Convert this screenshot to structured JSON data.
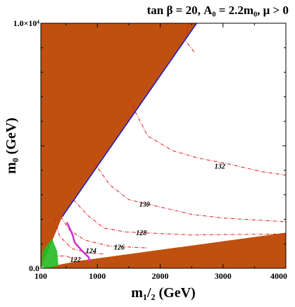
{
  "chart_data": {
    "type": "contour",
    "title": "tan β = 20, A₀ = 2.2m₀,  μ > 0",
    "xlabel": "m₁/₂ (GeV)",
    "ylabel": "m₀ (GeV)",
    "xlim": [
      100,
      4000
    ],
    "ylim": [
      0,
      10000
    ],
    "x_ticks": [
      100,
      1000,
      2000,
      3000,
      4000
    ],
    "x_tick_labels": [
      "100",
      "1000",
      "2000",
      "3000",
      "4000"
    ],
    "y_ticks": [
      0,
      10000
    ],
    "y_tick_labels": [
      "0.0",
      "1.0×10⁴"
    ],
    "colors": {
      "excluded": "#c0500f",
      "higgs_contours": "#e01818",
      "relic_density_boundary": "#2020c0",
      "purple_band": "#cc33cc",
      "green_region": "#22bb22"
    },
    "excluded_regions": [
      {
        "name": "upper-left excluded wedge",
        "polygon": [
          [
            100,
            10000
          ],
          [
            2580,
            10000
          ],
          [
            440,
            2100
          ],
          [
            100,
            0
          ]
        ]
      },
      {
        "name": "lower-right excluded wedge",
        "polygon": [
          [
            100,
            0
          ],
          [
            4000,
            0
          ],
          [
            4000,
            1450
          ],
          [
            700,
            300
          ]
        ]
      }
    ],
    "boundary_line": {
      "name": "upper boundary",
      "points": [
        [
          440,
          2100
        ],
        [
          2580,
          10000
        ]
      ]
    },
    "higgs_mass_contours": [
      {
        "label": "122",
        "label_at": [
          650,
          350
        ],
        "points": [
          [
            180,
            0
          ],
          [
            300,
            500
          ],
          [
            500,
            500
          ],
          [
            700,
            320
          ]
        ]
      },
      {
        "label": "124",
        "label_at": [
          900,
          700
        ],
        "points": [
          [
            320,
            2000
          ],
          [
            400,
            1300
          ],
          [
            600,
            800
          ],
          [
            850,
            630
          ],
          [
            1100,
            580
          ]
        ]
      },
      {
        "label": "126",
        "label_at": [
          1350,
          850
        ],
        "points": [
          [
            420,
            2100
          ],
          [
            560,
            1550
          ],
          [
            800,
            1150
          ],
          [
            1200,
            900
          ],
          [
            1550,
            860
          ],
          [
            1800,
            830
          ]
        ]
      },
      {
        "label": "128",
        "label_at": [
          1700,
          1430
        ],
        "points": [
          [
            620,
            2800
          ],
          [
            850,
            2150
          ],
          [
            1100,
            1650
          ],
          [
            1450,
            1480
          ],
          [
            2000,
            1420
          ],
          [
            2500,
            1360
          ],
          [
            4000,
            1400
          ]
        ]
      },
      {
        "label": "130",
        "label_at": [
          1750,
          2600
        ],
        "points": [
          [
            950,
            4300
          ],
          [
            1200,
            3400
          ],
          [
            1500,
            2800
          ],
          [
            2000,
            2500
          ],
          [
            2500,
            2200
          ],
          [
            3000,
            2050
          ],
          [
            4000,
            1900
          ]
        ]
      },
      {
        "label": "132",
        "label_at": [
          2950,
          4150
        ],
        "points": [
          [
            1500,
            6900
          ],
          [
            1800,
            5400
          ],
          [
            2200,
            4800
          ],
          [
            2600,
            4500
          ],
          [
            3100,
            4250
          ],
          [
            3600,
            3950
          ],
          [
            4000,
            3800
          ]
        ]
      },
      {
        "label": "",
        "label_at": null,
        "points": [
          [
            2450,
            10000
          ],
          [
            2400,
            9300
          ],
          [
            2550,
            8800
          ]
        ]
      }
    ],
    "purple_band": {
      "points": [
        [
          520,
          1850
        ],
        [
          600,
          1400
        ],
        [
          640,
          1050
        ],
        [
          760,
          700
        ],
        [
          860,
          450
        ],
        [
          880,
          300
        ]
      ]
    },
    "green_region": {
      "polygon": [
        [
          110,
          50
        ],
        [
          130,
          700
        ],
        [
          210,
          1000
        ],
        [
          280,
          1200
        ],
        [
          360,
          700
        ],
        [
          380,
          100
        ],
        [
          200,
          0
        ]
      ]
    }
  }
}
